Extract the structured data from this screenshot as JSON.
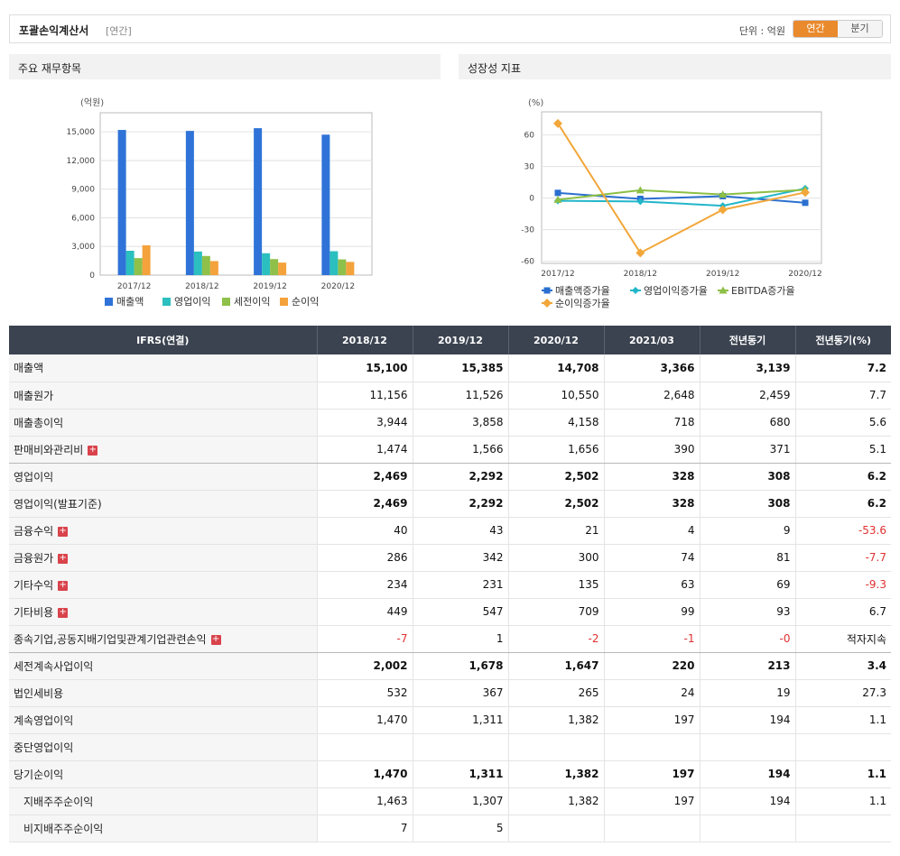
{
  "header": {
    "title": "포괄손익계산서",
    "period_tag": "[연간]",
    "unit": "단위 : 억원",
    "toggle_annual": "연간",
    "toggle_quarter": "분기"
  },
  "panels": {
    "left_title": "주요 재무항목",
    "right_title": "성장성 지표"
  },
  "colors": {
    "bar_revenue": "#2f73d8",
    "bar_op": "#2bbfbf",
    "bar_pretax": "#8fc04a",
    "bar_net": "#f4a23c",
    "line_revenue": "#2a6fcf",
    "line_op": "#22b6c9",
    "line_ebitda": "#8cbf45",
    "line_net": "#f2a73a",
    "negative": "#e03030",
    "table_header": "#3b4350"
  },
  "chart_data": [
    {
      "type": "bar",
      "unit_label": "(억원)",
      "categories": [
        "2017/12",
        "2018/12",
        "2019/12",
        "2020/12"
      ],
      "series": [
        {
          "name": "매출액",
          "values": [
            15200,
            15100,
            15385,
            14708
          ]
        },
        {
          "name": "영업이익",
          "values": [
            2550,
            2469,
            2292,
            2502
          ]
        },
        {
          "name": "세전이익",
          "values": [
            1780,
            2002,
            1678,
            1647
          ]
        },
        {
          "name": "순이익",
          "values": [
            3120,
            1470,
            1311,
            1382
          ]
        }
      ],
      "yticks": [
        0,
        3000,
        6000,
        9000,
        12000,
        15000
      ],
      "ytick_labels": [
        "0",
        "3,000",
        "6,000",
        "9,000",
        "12,000",
        "15,000"
      ],
      "ylim": [
        0,
        17000
      ],
      "grid": true,
      "legend_position": "bottom"
    },
    {
      "type": "line",
      "unit_label": "(%)",
      "categories": [
        "2017/12",
        "2018/12",
        "2019/12",
        "2020/12"
      ],
      "series": [
        {
          "name": "매출액증가율",
          "values": [
            5,
            -0.7,
            1.9,
            -4.4
          ]
        },
        {
          "name": "영업이익증가율",
          "values": [
            -2.5,
            -3.2,
            -7.2,
            9.2
          ]
        },
        {
          "name": "EBITDA증가율",
          "values": [
            -1.5,
            7.5,
            3.5,
            8.0
          ]
        },
        {
          "name": "순이익증가율",
          "values": [
            71,
            -52,
            -11,
            5.4
          ]
        }
      ],
      "yticks": [
        -60,
        -30,
        0,
        30,
        60
      ],
      "ytick_labels": [
        "-60",
        "-30",
        "0",
        "30",
        "60"
      ],
      "ylim": [
        -62,
        82
      ],
      "grid": true,
      "legend_position": "bottom"
    }
  ],
  "table": {
    "columns": [
      "IFRS(연결)",
      "2018/12",
      "2019/12",
      "2020/12",
      "2021/03",
      "전년동기",
      "전년동기(%)"
    ],
    "rows": [
      {
        "label": "매출액",
        "values": [
          "15,100",
          "15,385",
          "14,708",
          "3,366",
          "3,139",
          "7.2"
        ],
        "bold": true,
        "plus": false
      },
      {
        "label": "매출원가",
        "values": [
          "11,156",
          "11,526",
          "10,550",
          "2,648",
          "2,459",
          "7.7"
        ],
        "bold": false,
        "plus": false
      },
      {
        "label": "매출총이익",
        "values": [
          "3,944",
          "3,858",
          "4,158",
          "718",
          "680",
          "5.6"
        ],
        "bold": false,
        "plus": false
      },
      {
        "label": "판매비와관리비",
        "values": [
          "1,474",
          "1,566",
          "1,656",
          "390",
          "371",
          "5.1"
        ],
        "bold": false,
        "plus": true,
        "sep": true
      },
      {
        "label": "영업이익",
        "values": [
          "2,469",
          "2,292",
          "2,502",
          "328",
          "308",
          "6.2"
        ],
        "bold": true,
        "plus": false
      },
      {
        "label": "영업이익(발표기준)",
        "values": [
          "2,469",
          "2,292",
          "2,502",
          "328",
          "308",
          "6.2"
        ],
        "bold": true,
        "plus": false,
        "boldlabel": true
      },
      {
        "label": "금융수익",
        "values": [
          "40",
          "43",
          "21",
          "4",
          "9",
          "-53.6"
        ],
        "bold": false,
        "plus": true
      },
      {
        "label": "금융원가",
        "values": [
          "286",
          "342",
          "300",
          "74",
          "81",
          "-7.7"
        ],
        "bold": false,
        "plus": true
      },
      {
        "label": "기타수익",
        "values": [
          "234",
          "231",
          "135",
          "63",
          "69",
          "-9.3"
        ],
        "bold": false,
        "plus": true
      },
      {
        "label": "기타비용",
        "values": [
          "449",
          "547",
          "709",
          "99",
          "93",
          "6.7"
        ],
        "bold": false,
        "plus": true
      },
      {
        "label": "종속기업,공동지배기업및관계기업관련손익",
        "values": [
          "-7",
          "1",
          "-2",
          "-1",
          "-0",
          "적자지속"
        ],
        "bold": false,
        "plus": true,
        "sep": true
      },
      {
        "label": "세전계속사업이익",
        "values": [
          "2,002",
          "1,678",
          "1,647",
          "220",
          "213",
          "3.4"
        ],
        "bold": true,
        "plus": false
      },
      {
        "label": "법인세비용",
        "values": [
          "532",
          "367",
          "265",
          "24",
          "19",
          "27.3"
        ],
        "bold": false,
        "plus": false
      },
      {
        "label": "계속영업이익",
        "values": [
          "1,470",
          "1,311",
          "1,382",
          "197",
          "194",
          "1.1"
        ],
        "bold": false,
        "plus": false
      },
      {
        "label": "중단영업이익",
        "values": [
          "",
          "",
          "",
          "",
          "",
          ""
        ],
        "bold": false,
        "plus": false
      },
      {
        "label": "당기순이익",
        "values": [
          "1,470",
          "1,311",
          "1,382",
          "197",
          "194",
          "1.1"
        ],
        "bold": true,
        "plus": false
      },
      {
        "label": "지배주주순이익",
        "values": [
          "1,463",
          "1,307",
          "1,382",
          "197",
          "194",
          "1.1"
        ],
        "bold": false,
        "plus": false,
        "indent": true
      },
      {
        "label": "비지배주주순이익",
        "values": [
          "7",
          "5",
          "",
          "",
          "",
          ""
        ],
        "bold": false,
        "plus": false,
        "indent": true
      }
    ]
  }
}
